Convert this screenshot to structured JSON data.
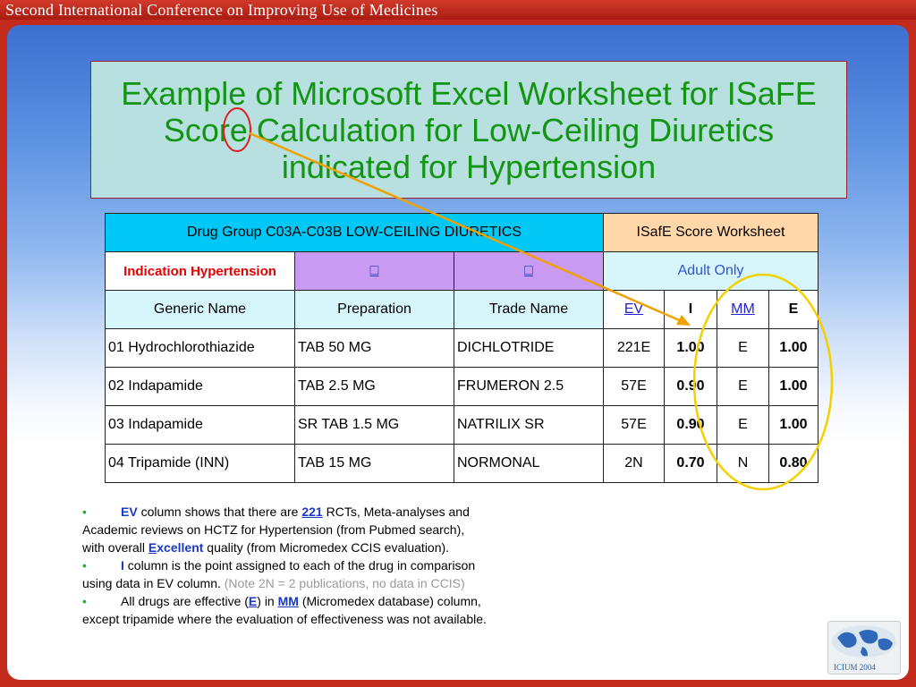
{
  "header": {
    "title": "Second International Conference on Improving Use of Medicines"
  },
  "slide_title": "Example of Microsoft Excel Worksheet for ISaFE Score Calculation for Low-Ceiling Diuretics indicated for Hypertension",
  "worksheet": {
    "drug_group": "Drug Group C03A-C03B LOW-CEILING DIURETICS",
    "worksheet_title": "ISafE Score Worksheet",
    "indication": "Indication Hypertension",
    "placeholder_1": "",
    "placeholder_2": "",
    "adult_only": "Adult Only",
    "columns": {
      "generic": "Generic Name",
      "preparation": "Preparation",
      "trade": "Trade Name",
      "ev": "EV",
      "i": "I",
      "mm": "MM",
      "e": "E"
    },
    "rows": [
      {
        "generic": "01 Hydrochlorothiazide",
        "prep": "TAB 50 MG",
        "trade": "DICHLOTRIDE",
        "ev": "221E",
        "i": "1.00",
        "mm": "E",
        "e": "1.00"
      },
      {
        "generic": "02 Indapamide",
        "prep": "TAB 2.5 MG",
        "trade": "FRUMERON 2.5",
        "ev": "57E",
        "i": "0.90",
        "mm": "E",
        "e": "1.00"
      },
      {
        "generic": "03 Indapamide",
        "prep": "SR TAB 1.5 MG",
        "trade": "NATRILIX  SR",
        "ev": "57E",
        "i": "0.90",
        "mm": "E",
        "e": "1.00"
      },
      {
        "generic": "04 Tripamide (INN)",
        "prep": "TAB 15 MG",
        "trade": "NORMONAL",
        "ev": "2N",
        "i": "0.70",
        "mm": "N",
        "e": "0.80"
      }
    ]
  },
  "notes": {
    "b1_ev": "EV",
    "b1_a": " column shows that there are ",
    "b1_221": "221",
    "b1_b": " RCTs, Meta-analyses and",
    "b1_line2": "Academic reviews on HCTZ for Hypertension (from Pubmed search),",
    "b1_c": "with overall ",
    "b1_excellent_e": "E",
    "b1_excellent_rest": "xcellent",
    "b1_d": " quality (from Micromedex CCIS evaluation).",
    "b2_i": "I",
    "b2_a": " column is the point assigned to each of the drug in comparison",
    "b2_b": "using data in EV column. ",
    "b2_note": "(Note 2N = 2 publications, no data in CCIS)",
    "b3_a": "All drugs are effective (",
    "b3_e": "E",
    "b3_b": ") in ",
    "b3_mm": "MM",
    "b3_c": " (Micromedex database) column,",
    "b3_line2": "except tripamide where the evaluation of effectiveness was not available."
  },
  "logo": {
    "label": "ICIUM 2004"
  },
  "colors": {
    "title_green": "#129512",
    "accent_red": "#c52b1d",
    "annotation_orange": "#f0a000",
    "annotation_yellow": "#f5d000"
  }
}
